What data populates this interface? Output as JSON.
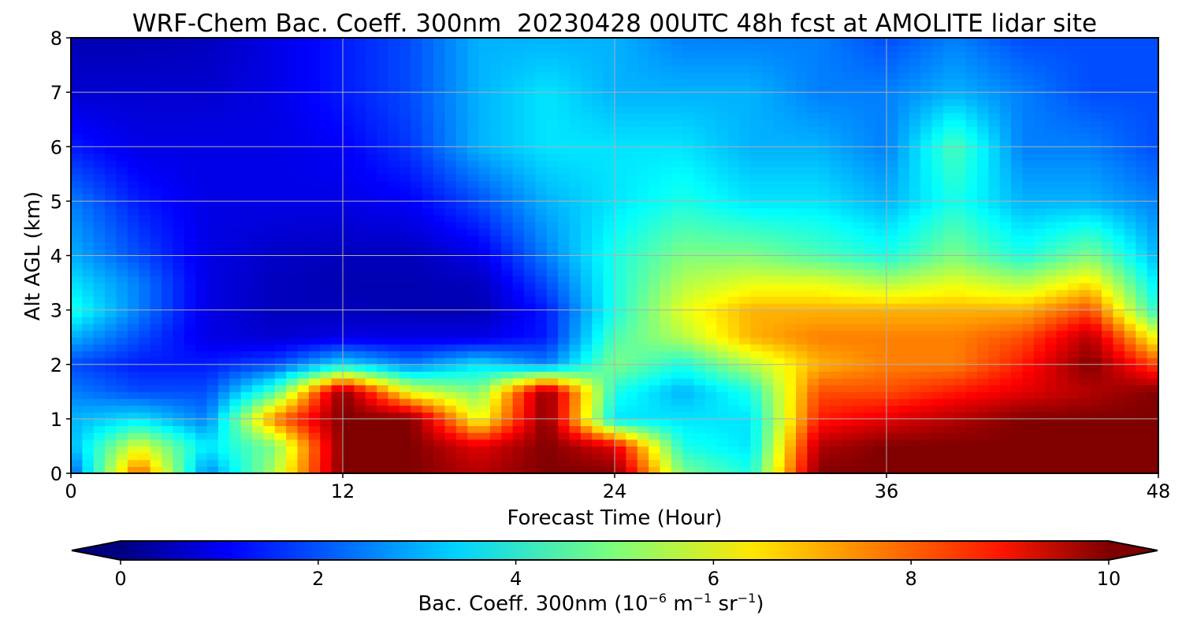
{
  "chart_data": {
    "type": "heatmap",
    "title": "WRF-Chem Bac. Coeff. 300nm  20230428 00UTC 48h fcst at AMOLITE lidar site",
    "xlabel": "Forecast Time (Hour)",
    "ylabel": "Alt AGL (km)",
    "xlim": [
      0,
      48
    ],
    "ylim": [
      0,
      8
    ],
    "x_ticks": [
      "0",
      "12",
      "24",
      "36",
      "48"
    ],
    "y_ticks": [
      "0",
      "1",
      "2",
      "3",
      "4",
      "5",
      "6",
      "7",
      "8"
    ],
    "grid": true,
    "colormap": "jet",
    "colorbar": {
      "min": 0,
      "max": 10,
      "ticks": [
        "0",
        "2",
        "4",
        "6",
        "8",
        "10"
      ],
      "extend": "both",
      "label_main": "Bac. Coeff. 300nm",
      "label_unit_parts": [
        "(10",
        "−6",
        " m",
        "−1",
        " sr",
        "−1",
        ")"
      ]
    },
    "x": [
      0,
      3,
      6,
      9,
      12,
      15,
      18,
      21,
      24,
      27,
      30,
      33,
      36,
      39,
      42,
      45,
      48
    ],
    "y": [
      0,
      0.5,
      1,
      1.5,
      2,
      2.5,
      3,
      3.5,
      4,
      5,
      6,
      7,
      8
    ],
    "values": [
      [
        2.0,
        8.0,
        2.5,
        5.5,
        10.0,
        10.0,
        9.5,
        10.0,
        10.0,
        5.0,
        4.0,
        10.0,
        10.0,
        10.0,
        10.0,
        10.0,
        10.0
      ],
      [
        3.0,
        6.0,
        3.5,
        5.0,
        10.0,
        10.0,
        9.0,
        10.0,
        9.0,
        4.0,
        3.5,
        9.5,
        10.0,
        10.0,
        10.0,
        10.0,
        10.0
      ],
      [
        3.0,
        3.5,
        2.5,
        7.5,
        10.0,
        10.0,
        6.0,
        10.0,
        3.5,
        3.5,
        3.5,
        8.5,
        9.0,
        9.5,
        10.0,
        10.0,
        10.0
      ],
      [
        2.5,
        2.0,
        2.0,
        4.5,
        10.0,
        6.0,
        5.0,
        10.0,
        4.0,
        3.0,
        4.0,
        8.0,
        8.0,
        8.5,
        9.0,
        9.5,
        10.0
      ],
      [
        2.0,
        1.5,
        1.5,
        2.0,
        3.5,
        2.5,
        3.5,
        2.5,
        5.0,
        4.0,
        5.5,
        7.0,
        7.5,
        7.5,
        8.5,
        10.0,
        8.0
      ],
      [
        3.0,
        2.0,
        1.0,
        0.8,
        1.0,
        1.0,
        1.0,
        1.5,
        4.5,
        5.5,
        7.0,
        7.5,
        7.5,
        7.5,
        8.0,
        9.5,
        6.0
      ],
      [
        4.0,
        2.5,
        1.0,
        0.6,
        0.6,
        0.5,
        0.5,
        1.5,
        4.0,
        6.0,
        7.0,
        7.0,
        7.0,
        7.0,
        7.0,
        8.0,
        4.0
      ],
      [
        3.5,
        2.5,
        1.0,
        0.6,
        0.5,
        0.5,
        0.6,
        2.0,
        4.0,
        5.5,
        6.0,
        6.0,
        5.5,
        6.0,
        5.5,
        6.5,
        3.5
      ],
      [
        3.0,
        2.0,
        1.0,
        0.7,
        0.6,
        0.6,
        1.0,
        2.5,
        4.0,
        5.0,
        5.0,
        4.5,
        4.0,
        5.0,
        4.0,
        5.0,
        3.0
      ],
      [
        2.5,
        1.5,
        1.0,
        1.0,
        1.0,
        1.2,
        2.0,
        3.0,
        3.5,
        4.0,
        3.5,
        3.5,
        3.0,
        4.0,
        3.0,
        3.0,
        2.5
      ],
      [
        1.5,
        1.0,
        1.0,
        1.0,
        1.2,
        1.8,
        3.0,
        3.5,
        3.5,
        3.5,
        3.0,
        3.0,
        2.5,
        4.5,
        2.5,
        2.5,
        2.0
      ],
      [
        0.8,
        0.8,
        0.8,
        1.0,
        1.5,
        2.0,
        3.0,
        3.5,
        3.0,
        3.0,
        3.0,
        2.5,
        2.5,
        3.0,
        2.5,
        2.0,
        2.0
      ],
      [
        0.5,
        0.5,
        0.6,
        1.0,
        1.5,
        2.0,
        3.0,
        3.0,
        3.0,
        2.5,
        2.5,
        2.5,
        2.0,
        2.5,
        2.0,
        2.0,
        2.0
      ]
    ]
  }
}
